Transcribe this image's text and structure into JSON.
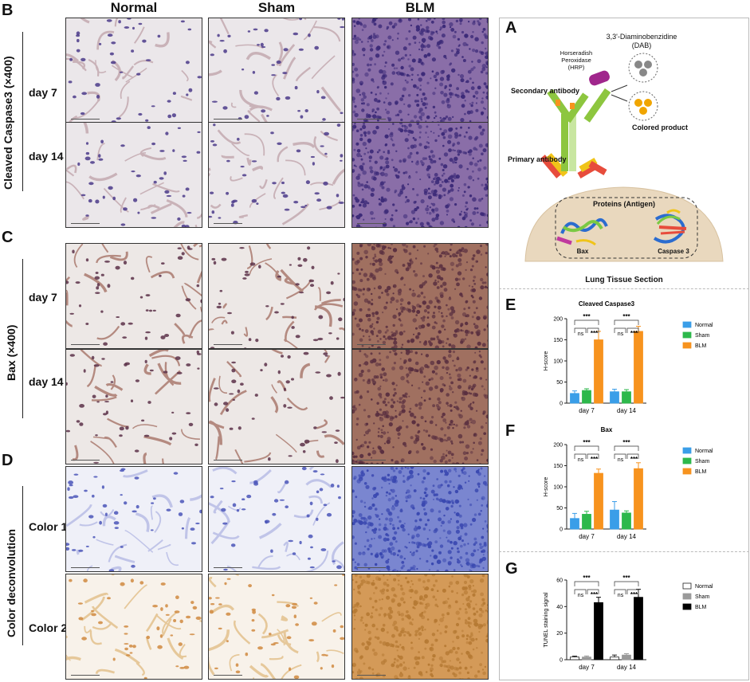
{
  "panels": {
    "A": "A",
    "B": "B",
    "C": "C",
    "D": "D",
    "E": "E",
    "F": "F",
    "G": "G"
  },
  "columns": [
    "Normal",
    "Sham",
    "BLM"
  ],
  "row_groups": {
    "cleaved": {
      "label": "Cleaved Caspase3 (×400)",
      "rows": [
        "day 7",
        "day 14"
      ]
    },
    "bax": {
      "label": "Bax (×400)",
      "rows": [
        "day 7",
        "day 14"
      ]
    },
    "colordeconv": {
      "label": "Color deconvolution",
      "rows": [
        "Color 1",
        "Color 2"
      ]
    }
  },
  "diagram": {
    "dab": "3,3'-Diaminobenzidine",
    "dab_abbr": "(DAB)",
    "hrp_line1": "Horseradish",
    "hrp_line2": "Peroxidase",
    "hrp_line3": "(HRP)",
    "secondary": "Secondary antibody",
    "colored": "Colored product",
    "primary": "Primary antibody",
    "proteins": "Proteins (Antigen)",
    "bax": "Bax",
    "caspase": "Caspase 3",
    "tissue": "Lung Tissue Section"
  },
  "chart_data": [
    {
      "type": "bar",
      "panel": "E",
      "title": "Cleaved Caspase3",
      "ylabel": "H-score",
      "categories": [
        "day 7",
        "day 14"
      ],
      "ylim": [
        0,
        200
      ],
      "yticks": [
        0,
        50,
        100,
        150,
        200
      ],
      "series": [
        {
          "name": "Normal",
          "values": [
            23,
            27
          ],
          "errors": [
            6,
            6
          ],
          "color": "#3a9ee8"
        },
        {
          "name": "Sham",
          "values": [
            30,
            27
          ],
          "errors": [
            4,
            5
          ],
          "color": "#2db84b"
        },
        {
          "name": "BLM",
          "values": [
            150,
            170
          ],
          "errors": [
            20,
            12
          ],
          "color": "#f7931e"
        }
      ],
      "annotations": {
        "top": "***",
        "inner_left": "ns",
        "inner_right": "***"
      }
    },
    {
      "type": "bar",
      "panel": "F",
      "title": "Bax",
      "ylabel": "H-score",
      "categories": [
        "day 7",
        "day 14"
      ],
      "ylim": [
        0,
        200
      ],
      "yticks": [
        0,
        50,
        100,
        150,
        200
      ],
      "series": [
        {
          "name": "Normal",
          "values": [
            25,
            45
          ],
          "errors": [
            12,
            20
          ],
          "color": "#3a9ee8"
        },
        {
          "name": "Sham",
          "values": [
            35,
            38
          ],
          "errors": [
            7,
            5
          ],
          "color": "#2db84b"
        },
        {
          "name": "BLM",
          "values": [
            132,
            143
          ],
          "errors": [
            10,
            14
          ],
          "color": "#f7931e"
        }
      ],
      "annotations": {
        "top": "***",
        "inner_left": "ns",
        "inner_right": "***"
      }
    },
    {
      "type": "bar",
      "panel": "G",
      "title": "",
      "ylabel": "TUNEL staining signal",
      "categories": [
        "day 7",
        "day 14"
      ],
      "ylim": [
        0,
        60
      ],
      "yticks": [
        0,
        20,
        40,
        60
      ],
      "series": [
        {
          "name": "Normal",
          "values": [
            2,
            2
          ],
          "errors": [
            0.7,
            1.5
          ],
          "color": "#ffffff"
        },
        {
          "name": "Sham",
          "values": [
            2,
            3.5
          ],
          "errors": [
            0.8,
            1.0
          ],
          "color": "#9a9a9a"
        },
        {
          "name": "BLM",
          "values": [
            43,
            47
          ],
          "errors": [
            4,
            6
          ],
          "color": "#000000"
        }
      ],
      "annotations": {
        "top": "***",
        "inner_left": "ns",
        "inner_right": "***"
      }
    }
  ]
}
